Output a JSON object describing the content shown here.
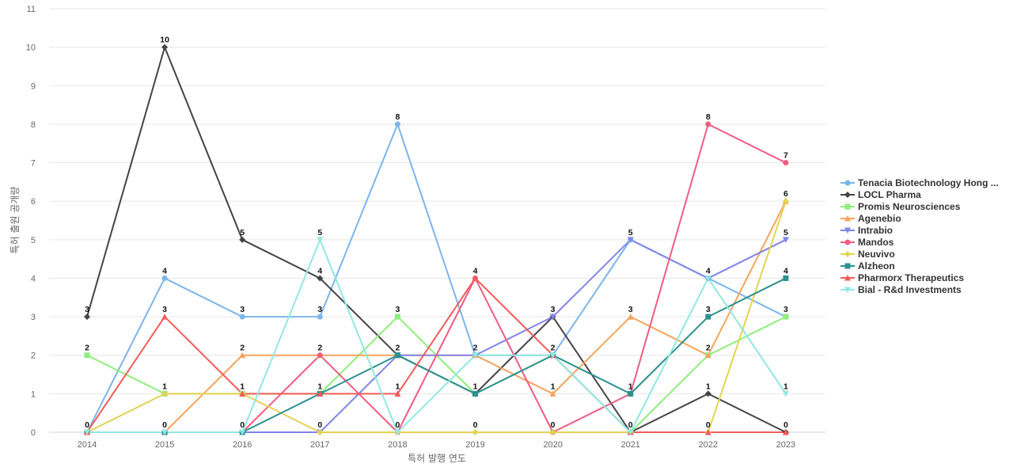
{
  "chart_data": {
    "type": "line",
    "xlabel": "특허 발행 연도",
    "ylabel": "특허 출원 공개량",
    "ylim": [
      0,
      11
    ],
    "yticks": [
      0,
      1,
      2,
      3,
      4,
      5,
      6,
      7,
      8,
      9,
      10,
      11
    ],
    "x": [
      "2014",
      "2015",
      "2016",
      "2017",
      "2018",
      "2019",
      "2020",
      "2021",
      "2022",
      "2023"
    ],
    "grid": "horizontal",
    "legend_position": "right",
    "series": [
      {
        "name": "Tenacia Biotechnology Hong ...",
        "color": "#7cb5ec",
        "marker": "circle",
        "values": [
          0,
          4,
          3,
          3,
          8,
          2,
          2,
          5,
          4,
          3
        ]
      },
      {
        "name": "LOCL Pharma",
        "color": "#434348",
        "marker": "diamond",
        "values": [
          3,
          10,
          5,
          4,
          2,
          1,
          3,
          0,
          1,
          0
        ]
      },
      {
        "name": "Promis Neurosciences",
        "color": "#90ed7d",
        "marker": "square",
        "values": [
          2,
          1,
          1,
          1,
          3,
          1,
          2,
          0,
          2,
          3
        ]
      },
      {
        "name": "Agenebio",
        "color": "#f7a35c",
        "marker": "triangle",
        "values": [
          0,
          0,
          2,
          2,
          2,
          2,
          1,
          3,
          2,
          6
        ]
      },
      {
        "name": "Intrabio",
        "color": "#8085e9",
        "marker": "triangle-down",
        "values": [
          0,
          0,
          0,
          0,
          2,
          2,
          3,
          5,
          4,
          5
        ]
      },
      {
        "name": "Mandos",
        "color": "#f15c80",
        "marker": "circle",
        "values": [
          0,
          0,
          0,
          2,
          0,
          4,
          0,
          1,
          8,
          7
        ]
      },
      {
        "name": "Neuvivo",
        "color": "#e4d354",
        "marker": "diamond",
        "values": [
          0,
          1,
          1,
          0,
          0,
          0,
          0,
          0,
          0,
          6
        ]
      },
      {
        "name": "Alzheon",
        "color": "#2b908f",
        "marker": "square",
        "values": [
          0,
          0,
          0,
          1,
          2,
          1,
          2,
          1,
          3,
          4
        ]
      },
      {
        "name": "Pharmorx Therapeutics",
        "color": "#f45b5b",
        "marker": "triangle",
        "values": [
          0,
          3,
          1,
          1,
          1,
          4,
          2,
          0,
          0,
          0
        ]
      },
      {
        "name": "Bial - R&d Investments",
        "color": "#91e8e1",
        "marker": "triangle-down",
        "values": [
          0,
          0,
          0,
          5,
          0,
          2,
          2,
          0,
          4,
          1
        ]
      }
    ],
    "data_labels": [
      {
        "x": "2014",
        "text": "0",
        "value": 0
      },
      {
        "x": "2014",
        "text": "2",
        "value": 2
      },
      {
        "x": "2014",
        "text": "3",
        "value": 3
      },
      {
        "x": "2015",
        "text": "0",
        "value": 0
      },
      {
        "x": "2015",
        "text": "1",
        "value": 1
      },
      {
        "x": "2015",
        "text": "3",
        "value": 3
      },
      {
        "x": "2015",
        "text": "4",
        "value": 4
      },
      {
        "x": "2015",
        "text": "10",
        "value": 10
      },
      {
        "x": "2016",
        "text": "0",
        "value": 0
      },
      {
        "x": "2016",
        "text": "1",
        "value": 1
      },
      {
        "x": "2016",
        "text": "2",
        "value": 2
      },
      {
        "x": "2016",
        "text": "3",
        "value": 3
      },
      {
        "x": "2016",
        "text": "5",
        "value": 5
      },
      {
        "x": "2017",
        "text": "0",
        "value": 0
      },
      {
        "x": "2017",
        "text": "1",
        "value": 1
      },
      {
        "x": "2017",
        "text": "2",
        "value": 2
      },
      {
        "x": "2017",
        "text": "3",
        "value": 3
      },
      {
        "x": "2017",
        "text": "4",
        "value": 4
      },
      {
        "x": "2017",
        "text": "5",
        "value": 5
      },
      {
        "x": "2018",
        "text": "0",
        "value": 0
      },
      {
        "x": "2018",
        "text": "1",
        "value": 1
      },
      {
        "x": "2018",
        "text": "2",
        "value": 2
      },
      {
        "x": "2018",
        "text": "3",
        "value": 3
      },
      {
        "x": "2018",
        "text": "8",
        "value": 8
      },
      {
        "x": "2019",
        "text": "0",
        "value": 0
      },
      {
        "x": "2019",
        "text": "1",
        "value": 1
      },
      {
        "x": "2019",
        "text": "2",
        "value": 2
      },
      {
        "x": "2019",
        "text": "4",
        "value": 4
      },
      {
        "x": "2020",
        "text": "0",
        "value": 0
      },
      {
        "x": "2020",
        "text": "1",
        "value": 1
      },
      {
        "x": "2020",
        "text": "2",
        "value": 2
      },
      {
        "x": "2020",
        "text": "3",
        "value": 3
      },
      {
        "x": "2021",
        "text": "0",
        "value": 0
      },
      {
        "x": "2021",
        "text": "1",
        "value": 1
      },
      {
        "x": "2021",
        "text": "3",
        "value": 3
      },
      {
        "x": "2021",
        "text": "5",
        "value": 5
      },
      {
        "x": "2022",
        "text": "0",
        "value": 0
      },
      {
        "x": "2022",
        "text": "1",
        "value": 1
      },
      {
        "x": "2022",
        "text": "2",
        "value": 2
      },
      {
        "x": "2022",
        "text": "3",
        "value": 3
      },
      {
        "x": "2022",
        "text": "4",
        "value": 4
      },
      {
        "x": "2022",
        "text": "8",
        "value": 8
      },
      {
        "x": "2023",
        "text": "0",
        "value": 0
      },
      {
        "x": "2023",
        "text": "1",
        "value": 1
      },
      {
        "x": "2023",
        "text": "3",
        "value": 3
      },
      {
        "x": "2023",
        "text": "4",
        "value": 4
      },
      {
        "x": "2023",
        "text": "5",
        "value": 5
      },
      {
        "x": "2023",
        "text": "6",
        "value": 6
      },
      {
        "x": "2023",
        "text": "7",
        "value": 7
      }
    ]
  }
}
